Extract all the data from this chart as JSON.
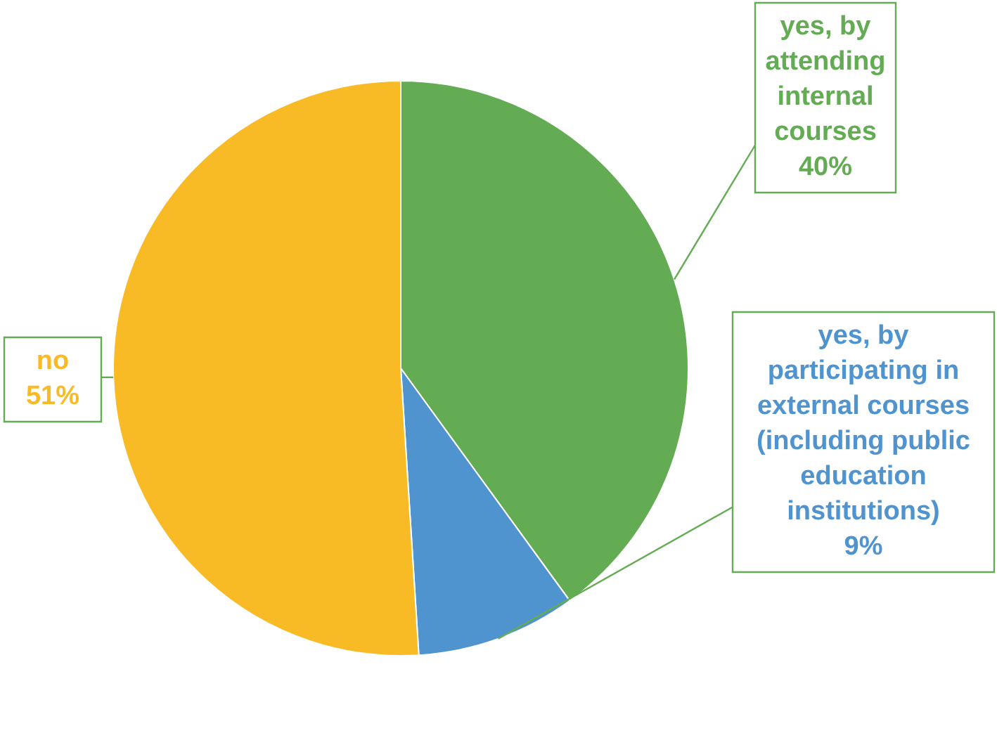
{
  "chart_data": {
    "type": "pie",
    "categories": [
      "yes, by attending internal courses",
      "yes, by participating in external courses (including public education institutions)",
      "no"
    ],
    "values": [
      40,
      9,
      51
    ],
    "colors": [
      "#64ac54",
      "#4f93cf",
      "#f8bb26"
    ],
    "value_labels": [
      "40%",
      "9%",
      "51%"
    ]
  }
}
